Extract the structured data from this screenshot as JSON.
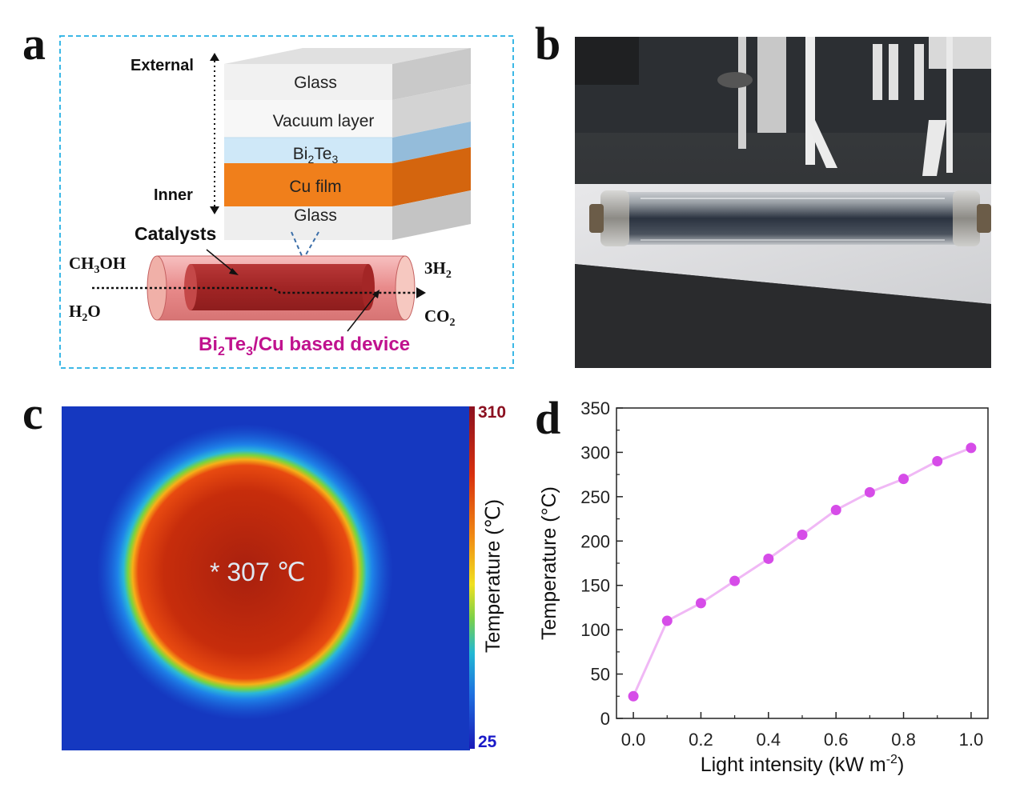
{
  "panel_a": {
    "letter": "a",
    "external_label": "External",
    "inner_label": "Inner",
    "layers": [
      {
        "name": "Glass",
        "color": "#f2f2f2",
        "side": "#c8c8c8"
      },
      {
        "name": "Vacuum layer",
        "color": "#f6f6f6",
        "side": "#d0d0d0"
      },
      {
        "name": "Bi2Te3",
        "color": "#cfe8f8",
        "side": "#95bedb"
      },
      {
        "name": "Cu film",
        "color": "#f07f1b",
        "side": "#d96a10"
      },
      {
        "name": "Glass",
        "color": "#f2f2f2",
        "side": "#c8c8c8"
      }
    ],
    "layer_bi_main": "Bi",
    "layer_bi_sub1": "2",
    "layer_bi_te": "Te",
    "layer_bi_sub2": "3",
    "catalysts_label": "Catalysts",
    "inlet_1": "CH",
    "inlet_1_sub": "3",
    "inlet_1_end": "OH",
    "inlet_2": "H",
    "inlet_2_sub": "2",
    "inlet_2_end": "O",
    "outlet_1": "3H",
    "outlet_1_sub": "2",
    "outlet_2": "CO",
    "outlet_2_sub": "2",
    "device_a": "Bi",
    "device_sub1": "2",
    "device_b": "Te",
    "device_sub2": "3",
    "device_c": "/Cu based device",
    "border_color": "#3cb8e6",
    "device_color": "#c0128e"
  },
  "panel_b": {
    "letter": "b"
  },
  "panel_c": {
    "letter": "c",
    "spot_reading": "* 307 ℃",
    "colorbar_max": "310",
    "colorbar_min": "25",
    "colorbar_label": "Temperature (℃)",
    "max_color": "#8b1020",
    "min_color": "#1a1ac8"
  },
  "panel_d": {
    "letter": "d",
    "chart_data": {
      "type": "line",
      "x": [
        0.0,
        0.1,
        0.2,
        0.3,
        0.4,
        0.5,
        0.6,
        0.7,
        0.8,
        0.9,
        1.0
      ],
      "y": [
        25,
        110,
        130,
        155,
        180,
        207,
        235,
        255,
        270,
        290,
        305
      ],
      "xlabel_main": "Light intensity (kW m",
      "xlabel_sup": "-2",
      "xlabel_end": ")",
      "ylabel": "Temperature (°C)",
      "xlim": [
        -0.05,
        1.05
      ],
      "ylim": [
        0,
        350
      ],
      "xticks": [
        "0.0",
        "0.2",
        "0.4",
        "0.6",
        "0.8",
        "1.0"
      ],
      "yticks": [
        "0",
        "50",
        "100",
        "150",
        "200",
        "250",
        "300",
        "350"
      ],
      "marker_color": "#d64ce8",
      "line_color": "#f0b8f5",
      "grid": false
    }
  }
}
